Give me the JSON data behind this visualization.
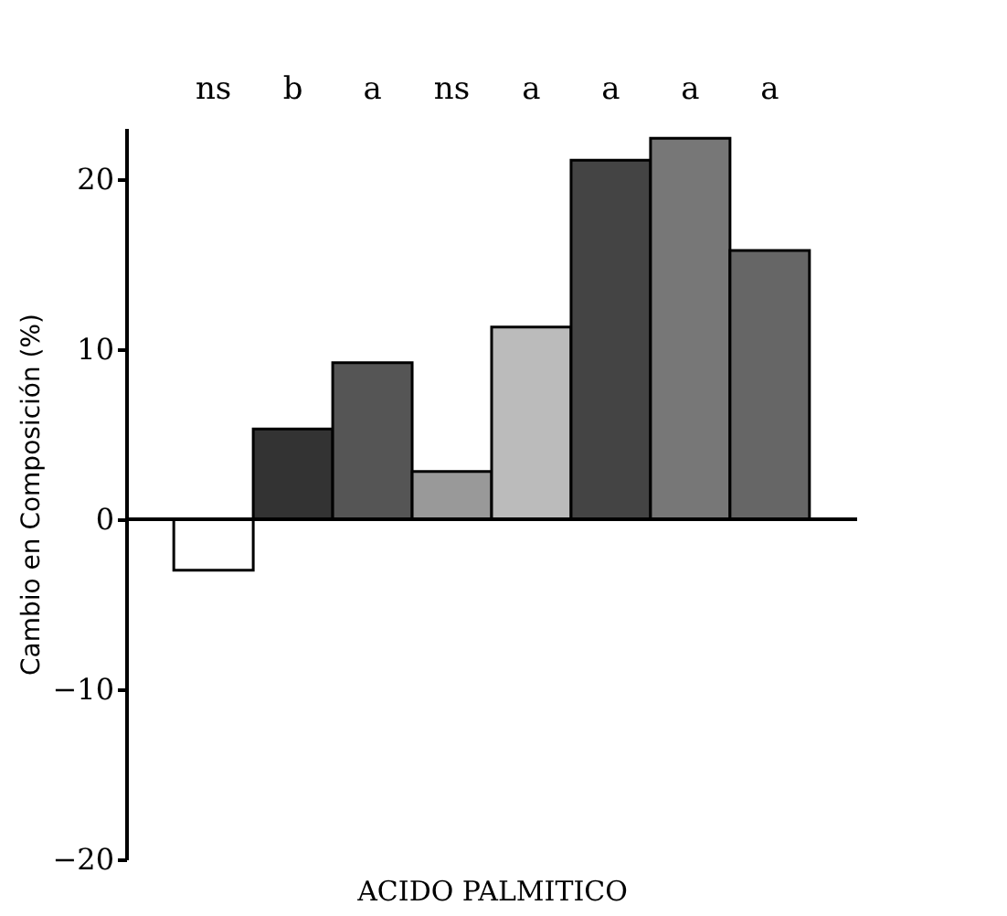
{
  "chart_data": {
    "type": "bar",
    "xlabel": "ACIDO PALMITICO",
    "ylabel": "Cambio en Composición (%)",
    "categories": [
      null,
      null,
      null,
      null,
      null,
      null,
      null,
      null
    ],
    "values": [
      -3.0,
      5.3,
      9.2,
      2.8,
      11.3,
      21.1,
      22.4,
      15.8
    ],
    "colors": [
      "#ffffff",
      "#333333",
      "#555555",
      "#999999",
      "#bbbbbb",
      "#444444",
      "#777777",
      "#666666"
    ],
    "annotations": [
      "ns",
      "b",
      "a",
      "ns",
      "a",
      "a",
      "a",
      "a"
    ],
    "ylim": [
      -20,
      23
    ],
    "yticks": [
      -20,
      -10,
      0,
      10,
      20
    ],
    "tick_labels": "y"
  }
}
